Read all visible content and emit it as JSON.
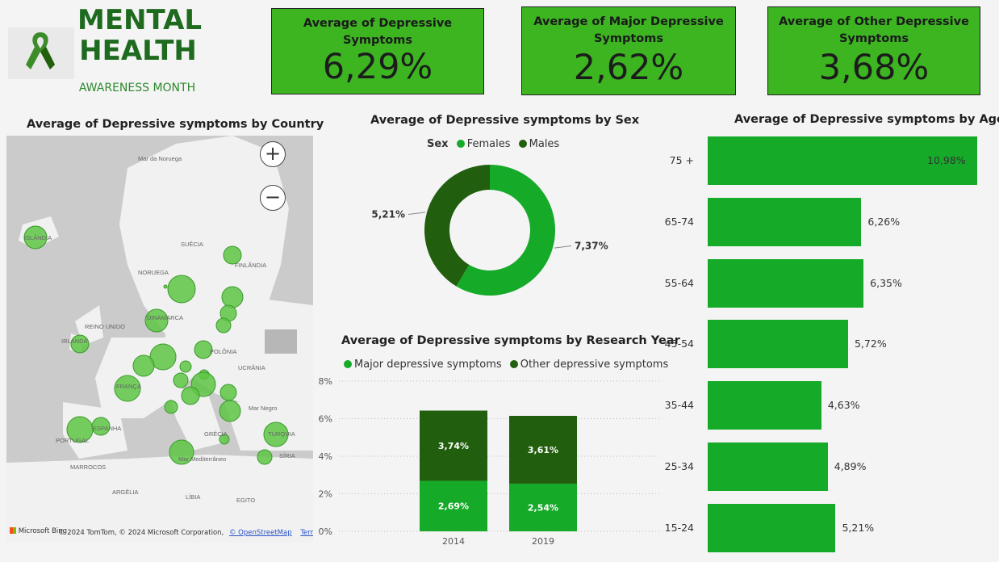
{
  "header": {
    "title_line1": "MENTAL",
    "title_line2": "HEALTH",
    "subtitle": "AWARENESS MONTH",
    "logo_icon": "awareness-ribbon-icon"
  },
  "kpis": [
    {
      "title": "Average of Depressive Symptoms",
      "value": "6,29%"
    },
    {
      "title": "Average of Major Depressive Symptoms",
      "value": "2,62%"
    },
    {
      "title": "Average of Other Depressive Symptoms",
      "value": "3,68%"
    }
  ],
  "colors": {
    "kpi_bg": "#3cb521",
    "light_green": "#15aa28",
    "dark_green": "#215e0e",
    "title_green": "#1e6a1e"
  },
  "map": {
    "title": "Average of Depressive symptoms by Country",
    "zoom_in": "+",
    "zoom_out": "−",
    "labels": [
      "Mar da Noruega",
      "ISLÂNDIA",
      "SUÉCIA",
      "FINLÂNDIA",
      "NORUEGA",
      "DINAMARCA",
      "REINO UNIDO",
      "IRLANDA",
      "POLÔNIA",
      "UCRÂNIA",
      "FRANÇA",
      "Mar Negro",
      "ESPANHA",
      "PORTUGAL",
      "GRÉCIA",
      "TURQUIA",
      "SÍRIA",
      "Mar Mediterrâneo",
      "MARROCOS",
      "ARGÉLIA",
      "LÍBIA",
      "EGITO"
    ],
    "attribution": {
      "brand": "Microsoft Bing",
      "text": "© 2024 TomTom, © 2024 Microsoft Corporation,",
      "osm": "© OpenStreetMap",
      "terms": "Terms"
    }
  },
  "chart_data": [
    {
      "type": "pie",
      "title": "Average of Depressive symptoms by Sex",
      "legend_title": "Sex",
      "categories": [
        "Females",
        "Males"
      ],
      "values": [
        7.37,
        5.21
      ],
      "labels": [
        "7,37%",
        "5,21%"
      ],
      "colors": [
        "#15aa28",
        "#215e0e"
      ]
    },
    {
      "type": "bar",
      "stacked": true,
      "title": "Average of Depressive symptoms by Research Year",
      "categories": [
        "2014",
        "2019"
      ],
      "series": [
        {
          "name": "Major depressive symptoms",
          "values": [
            2.69,
            2.54
          ],
          "labels": [
            "2,69%",
            "2,54%"
          ],
          "color": "#15aa28"
        },
        {
          "name": "Other depressive symptoms",
          "values": [
            3.74,
            3.61
          ],
          "labels": [
            "3,74%",
            "3,61%"
          ],
          "color": "#215e0e"
        }
      ],
      "yticks": [
        "0%",
        "2%",
        "4%",
        "6%",
        "8%"
      ],
      "ylim": [
        0,
        8
      ],
      "legend": "top"
    },
    {
      "type": "bar",
      "orientation": "horizontal",
      "title": "Average of Depressive symptoms by Age",
      "categories": [
        "75 +",
        "65-74",
        "55-64",
        "45-54",
        "35-44",
        "25-34",
        "15-24"
      ],
      "values": [
        10.98,
        6.26,
        6.35,
        5.72,
        4.63,
        4.89,
        5.21
      ],
      "labels": [
        "10,98%",
        "6,26%",
        "6,35%",
        "5,72%",
        "4,63%",
        "4,89%",
        "5,21%"
      ],
      "color": "#15aa28"
    }
  ]
}
